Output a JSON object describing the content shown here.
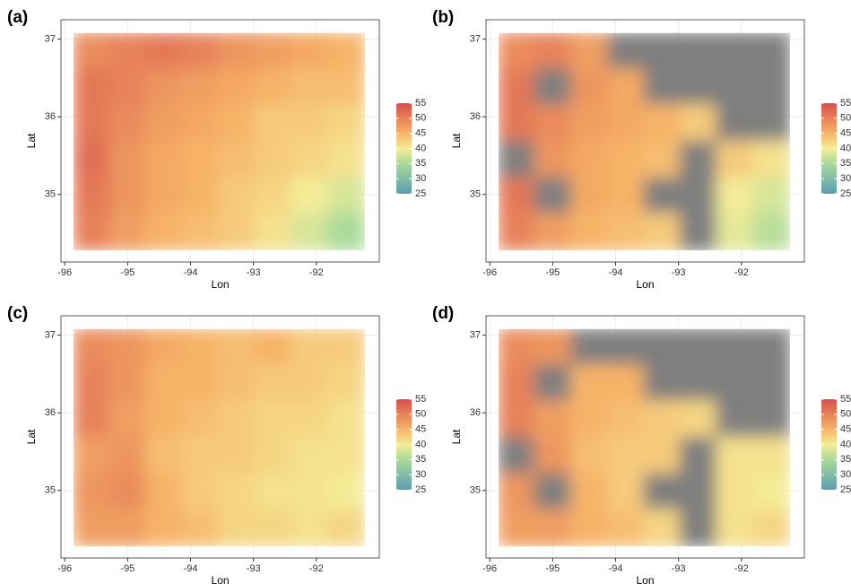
{
  "chart_data": [
    {
      "type": "heatmap",
      "panel_label": "(a)",
      "xlabel": "Lon",
      "ylabel": "Lat",
      "xlim": [
        -96.06,
        -91.0
      ],
      "ylim": [
        34.13,
        37.25
      ],
      "xticks": [
        -96,
        -95,
        -94,
        -93,
        -92
      ],
      "yticks": [
        35,
        36,
        37
      ],
      "x_bins": [
        -95.86,
        -95.28,
        -94.7,
        -94.12,
        -93.54,
        -92.97,
        -92.39,
        -91.81,
        -91.23
      ],
      "y_bins": [
        37.08,
        36.61,
        36.15,
        35.68,
        35.21,
        34.75,
        34.28
      ],
      "values": [
        [
          49,
          50,
          51,
          50,
          48,
          47,
          46,
          45
        ],
        [
          51,
          50,
          48,
          47,
          46,
          45,
          44,
          44
        ],
        [
          51,
          49,
          47,
          46,
          45,
          43,
          43,
          42
        ],
        [
          52,
          48,
          46,
          45,
          44,
          43,
          42,
          41
        ],
        [
          51,
          48,
          46,
          45,
          43,
          42,
          40,
          38
        ],
        [
          50,
          47,
          45,
          44,
          43,
          41,
          38,
          35
        ]
      ],
      "na_color": "#7f7f7f",
      "grid": true,
      "colorbar": {
        "lim": [
          25,
          55
        ],
        "ticks": [
          25,
          30,
          35,
          40,
          45,
          50,
          55
        ],
        "stops": [
          25,
          35,
          40,
          45,
          55
        ],
        "colors": [
          "#5d9db0",
          "#a9da9a",
          "#f4ec98",
          "#f7b367",
          "#d6504c"
        ]
      }
    },
    {
      "type": "heatmap",
      "panel_label": "(b)",
      "xlabel": "Lon",
      "ylabel": "Lat",
      "xlim": [
        -96.06,
        -91.0
      ],
      "ylim": [
        34.13,
        37.25
      ],
      "xticks": [
        -96,
        -95,
        -94,
        -93,
        -92
      ],
      "yticks": [
        35,
        36,
        37
      ],
      "x_bins": [
        -95.86,
        -95.28,
        -94.7,
        -94.12,
        -93.54,
        -92.97,
        -92.39,
        -91.81,
        -91.23
      ],
      "y_bins": [
        37.08,
        36.61,
        36.15,
        35.68,
        35.21,
        34.75,
        34.28
      ],
      "values": [
        [
          49,
          50,
          47,
          null,
          null,
          null,
          null,
          null
        ],
        [
          51,
          null,
          48,
          46,
          null,
          null,
          null,
          null
        ],
        [
          51,
          49,
          47,
          46,
          45,
          43,
          null,
          null
        ],
        [
          null,
          48,
          46,
          45,
          44,
          null,
          43,
          41
        ],
        [
          51,
          null,
          46,
          45,
          null,
          null,
          40,
          38
        ],
        [
          50,
          47,
          45,
          44,
          43,
          null,
          39,
          36
        ]
      ],
      "na_color": "#7f7f7f",
      "grid": true,
      "colorbar": {
        "lim": [
          25,
          55
        ],
        "ticks": [
          25,
          30,
          35,
          40,
          45,
          50,
          55
        ],
        "stops": [
          25,
          35,
          40,
          45,
          55
        ],
        "colors": [
          "#5d9db0",
          "#a9da9a",
          "#f4ec98",
          "#f7b367",
          "#d6504c"
        ]
      }
    },
    {
      "type": "heatmap",
      "panel_label": "(c)",
      "xlabel": "Lon",
      "ylabel": "Lat",
      "xlim": [
        -96.06,
        -91.0
      ],
      "ylim": [
        34.13,
        37.25
      ],
      "xticks": [
        -96,
        -95,
        -94,
        -93,
        -92
      ],
      "yticks": [
        35,
        36,
        37
      ],
      "x_bins": [
        -95.86,
        -95.28,
        -94.7,
        -94.12,
        -93.54,
        -92.97,
        -92.39,
        -91.81,
        -91.23
      ],
      "y_bins": [
        37.08,
        36.61,
        36.15,
        35.68,
        35.21,
        34.75,
        34.28
      ],
      "values": [
        [
          49,
          48,
          46,
          45,
          44,
          45,
          43,
          43
        ],
        [
          50,
          48,
          45,
          45,
          44,
          43,
          43,
          42
        ],
        [
          50,
          47,
          45,
          44,
          43,
          42,
          42,
          41
        ],
        [
          47,
          48,
          44,
          43,
          43,
          42,
          41,
          41
        ],
        [
          48,
          49,
          45,
          43,
          42,
          41,
          41,
          40
        ],
        [
          47,
          47,
          45,
          44,
          42,
          42,
          41,
          42
        ]
      ],
      "na_color": "#7f7f7f",
      "grid": true,
      "colorbar": {
        "lim": [
          25,
          55
        ],
        "ticks": [
          25,
          30,
          35,
          40,
          45,
          50,
          55
        ],
        "stops": [
          25,
          35,
          40,
          45,
          55
        ],
        "colors": [
          "#5d9db0",
          "#a9da9a",
          "#f4ec98",
          "#f7b367",
          "#d6504c"
        ]
      }
    },
    {
      "type": "heatmap",
      "panel_label": "(d)",
      "xlabel": "Lon",
      "ylabel": "Lat",
      "xlim": [
        -96.06,
        -91.0
      ],
      "ylim": [
        34.13,
        37.25
      ],
      "xticks": [
        -96,
        -95,
        -94,
        -93,
        -92
      ],
      "yticks": [
        35,
        36,
        37
      ],
      "x_bins": [
        -95.86,
        -95.28,
        -94.7,
        -94.12,
        -93.54,
        -92.97,
        -92.39,
        -91.81,
        -91.23
      ],
      "y_bins": [
        37.08,
        36.61,
        36.15,
        35.68,
        35.21,
        34.75,
        34.28
      ],
      "values": [
        [
          49,
          48,
          null,
          null,
          null,
          null,
          null,
          null
        ],
        [
          50,
          null,
          45,
          45,
          null,
          null,
          null,
          null
        ],
        [
          50,
          47,
          45,
          44,
          43,
          42,
          null,
          null
        ],
        [
          null,
          48,
          44,
          43,
          43,
          null,
          41,
          41
        ],
        [
          48,
          null,
          45,
          43,
          null,
          null,
          41,
          40
        ],
        [
          47,
          47,
          45,
          44,
          42,
          null,
          41,
          42
        ]
      ],
      "na_color": "#7f7f7f",
      "grid": true,
      "colorbar": {
        "lim": [
          25,
          55
        ],
        "ticks": [
          25,
          30,
          35,
          40,
          45,
          50,
          55
        ],
        "stops": [
          25,
          35,
          40,
          45,
          55
        ],
        "colors": [
          "#5d9db0",
          "#a9da9a",
          "#f4ec98",
          "#f7b367",
          "#d6504c"
        ]
      }
    }
  ]
}
